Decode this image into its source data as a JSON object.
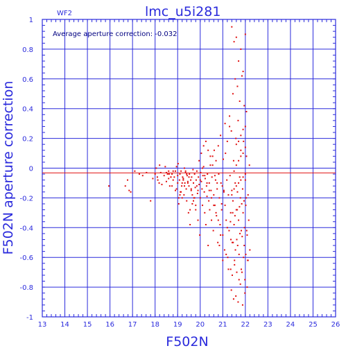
{
  "chart_data": {
    "type": "scatter",
    "title": "lmc_u5i281",
    "subtitle": "WF2",
    "annotation": "Average aperture correction: -0.032",
    "xlabel": "F502N",
    "ylabel": "F502N aperture correction",
    "xlim": [
      13,
      26
    ],
    "ylim": [
      -1,
      1
    ],
    "xticks": [
      "13",
      "14",
      "15",
      "16",
      "17",
      "18",
      "19",
      "20",
      "21",
      "22",
      "23",
      "24",
      "25",
      "26"
    ],
    "yticks": [
      "-1",
      "-0.8",
      "-0.6",
      "-0.4",
      "-0.2",
      "0",
      "0.2",
      "0.4",
      "0.6",
      "0.8",
      "1"
    ],
    "grid": true,
    "reference_line_y": -0.032,
    "colors": {
      "axes": "#2a2adc",
      "points": "#e01010",
      "reference": "#e01010"
    },
    "x": [
      15.95,
      16.68,
      16.78,
      16.85,
      16.92,
      17.1,
      17.3,
      17.45,
      17.62,
      17.8,
      17.9,
      18.0,
      18.05,
      18.1,
      18.12,
      18.18,
      18.2,
      18.25,
      18.3,
      18.4,
      18.5,
      18.6,
      18.62,
      18.7,
      18.75,
      18.8,
      18.9,
      18.95,
      19.0,
      19.02,
      19.05,
      19.08,
      19.1,
      19.12,
      19.15,
      19.18,
      19.2,
      19.22,
      19.25,
      19.28,
      19.3,
      19.32,
      19.35,
      19.38,
      19.4,
      19.42,
      19.45,
      19.48,
      19.5,
      19.52,
      19.55,
      19.58,
      19.6,
      19.62,
      19.65,
      19.68,
      19.7,
      19.72,
      19.75,
      19.78,
      19.8,
      19.82,
      19.85,
      19.88,
      19.9,
      19.92,
      19.95,
      19.98,
      20.0,
      20.02,
      20.05,
      20.08,
      20.1,
      20.12,
      20.15,
      20.18,
      20.2,
      20.22,
      20.25,
      20.28,
      20.3,
      20.32,
      20.35,
      20.38,
      20.4,
      20.42,
      20.45,
      20.48,
      20.5,
      20.52,
      20.55,
      20.58,
      20.6,
      20.62,
      20.65,
      20.68,
      20.7,
      20.72,
      20.75,
      20.78,
      20.8,
      20.82,
      20.85,
      20.88,
      20.9,
      20.92,
      20.95,
      20.98,
      21.0,
      21.02,
      21.05,
      21.08,
      21.1,
      21.12,
      21.15,
      21.18,
      21.2,
      21.22,
      21.25,
      21.28,
      21.3,
      21.32,
      21.35,
      21.38,
      21.4,
      21.42,
      21.45,
      21.48,
      21.5,
      21.52,
      21.55,
      21.58,
      21.6,
      21.62,
      21.65,
      21.68,
      21.7,
      21.72,
      21.75,
      21.78,
      21.8,
      21.82,
      21.85,
      21.88,
      21.9,
      21.92,
      21.95,
      21.98,
      22.0,
      22.02,
      22.05,
      22.08,
      22.1,
      22.12,
      22.15,
      22.18,
      22.2,
      21.35,
      21.4,
      21.5,
      21.6,
      21.7,
      21.8,
      21.9,
      22.0,
      21.45,
      21.55,
      21.65,
      21.75,
      21.85,
      21.95,
      22.05,
      21.3,
      21.38,
      21.48,
      21.58,
      21.68,
      21.78,
      21.88,
      21.98,
      22.08,
      21.42,
      21.52,
      21.62,
      21.72,
      21.82,
      21.92,
      22.02,
      22.12,
      21.36,
      21.46,
      21.56,
      21.66,
      21.76,
      21.86,
      21.96,
      22.06,
      21.34,
      21.44,
      21.54,
      21.64,
      21.74,
      21.84,
      21.94,
      22.04,
      21.4,
      21.5,
      21.6,
      21.7,
      21.8,
      21.9,
      22.0,
      21.5,
      21.6,
      21.7,
      21.8,
      21.9,
      22.0,
      21.6,
      21.7,
      21.8,
      21.9,
      22.0,
      21.1,
      21.15,
      21.2,
      21.25,
      20.95,
      21.0,
      21.05,
      20.85,
      20.9,
      20.75,
      20.8,
      20.65,
      20.7,
      20.55,
      20.6,
      20.45,
      20.5,
      20.35,
      20.4,
      20.25,
      20.3,
      20.15,
      20.2,
      20.05,
      20.1,
      19.95,
      20.0,
      19.85,
      19.9,
      19.75,
      19.8,
      19.65,
      19.7,
      19.55,
      19.6,
      19.45,
      19.5,
      19.35,
      19.4,
      19.25,
      19.3,
      19.15,
      19.2,
      19.05,
      19.1,
      18.95,
      19.0,
      18.85,
      18.9,
      18.75,
      18.8,
      18.65,
      18.7,
      18.55,
      18.6,
      18.45,
      18.5
    ],
    "y": [
      -0.12,
      -0.12,
      -0.08,
      -0.15,
      -0.16,
      -0.02,
      -0.04,
      -0.05,
      -0.03,
      -0.22,
      -0.07,
      -0.04,
      0.0,
      -0.06,
      -0.08,
      -0.1,
      0.02,
      -0.03,
      -0.11,
      -0.05,
      -0.09,
      -0.07,
      -0.04,
      -0.06,
      -0.12,
      -0.02,
      -0.15,
      0.01,
      -0.05,
      0.03,
      -0.2,
      -0.08,
      -0.04,
      -0.16,
      -0.02,
      -0.12,
      -0.1,
      -0.06,
      -0.07,
      -0.18,
      0.0,
      -0.1,
      -0.03,
      -0.14,
      -0.22,
      -0.05,
      -0.09,
      -0.3,
      -0.12,
      -0.04,
      -0.38,
      -0.08,
      -0.15,
      -0.06,
      -0.24,
      -0.01,
      -0.1,
      -0.2,
      -0.04,
      -0.13,
      -0.28,
      -0.08,
      -0.02,
      -0.17,
      -0.35,
      -0.06,
      -0.11,
      -0.45,
      -0.2,
      -0.03,
      -0.09,
      -0.14,
      -0.25,
      -0.05,
      0.01,
      -0.16,
      -0.3,
      -0.07,
      -0.38,
      -0.12,
      -0.19,
      -0.04,
      -0.52,
      -0.22,
      -0.1,
      -0.28,
      0.02,
      -0.15,
      -0.35,
      -0.06,
      0.08,
      -0.42,
      -0.18,
      0.12,
      -0.25,
      -0.08,
      0.05,
      -0.32,
      -0.14,
      -0.5,
      0.15,
      -0.04,
      -0.2,
      -0.38,
      0.22,
      -0.1,
      -0.28,
      -0.12,
      -0.45,
      0.06,
      -0.16,
      -0.55,
      -0.25,
      0.1,
      -0.35,
      -0.08,
      0.18,
      -0.6,
      -0.18,
      -0.42,
      0.28,
      -0.05,
      -0.3,
      0.25,
      -0.15,
      -0.5,
      -0.22,
      0.05,
      -0.38,
      -0.62,
      -0.1,
      0.2,
      -0.28,
      -0.48,
      -0.16,
      0.32,
      -0.35,
      -0.58,
      -0.06,
      -0.2,
      0.12,
      -0.42,
      -0.7,
      -0.14,
      -0.3,
      0.18,
      -0.52,
      -0.75,
      -0.08,
      -0.25,
      0.08,
      -0.45,
      -0.62,
      -0.18,
      -0.35,
      0.02,
      -0.55,
      -0.68,
      0.95,
      0.85,
      0.88,
      0.72,
      0.8,
      0.65,
      0.9,
      0.5,
      0.6,
      0.55,
      0.45,
      0.62,
      0.42,
      0.38,
      0.35,
      -0.82,
      -0.88,
      -0.86,
      -0.9,
      -0.78,
      -0.92,
      -0.84,
      -0.8,
      -0.72,
      -0.65,
      -0.7,
      -0.75,
      -0.68,
      -0.6,
      -0.58,
      -0.62,
      -0.48,
      -0.5,
      -0.55,
      -0.52,
      -0.44,
      -0.46,
      -0.4,
      -0.42,
      -0.36,
      -0.3,
      -0.32,
      -0.28,
      -0.26,
      -0.24,
      -0.22,
      -0.2,
      -0.18,
      -0.14,
      -0.12,
      -0.1,
      -0.08,
      -0.06,
      -0.04,
      -0.02,
      0.02,
      0.05,
      0.08,
      0.1,
      0.14,
      0.16,
      0.18,
      0.22,
      0.26,
      0.28,
      0.3,
      -0.58,
      -0.4,
      -0.68,
      -0.24,
      -0.62,
      -0.15,
      -0.52,
      -0.45,
      -0.1,
      -0.35,
      -0.05,
      -0.3,
      0.02,
      -0.25,
      0.08,
      -0.2,
      0.12,
      -0.15,
      0.18,
      -0.1,
      0.15,
      -0.05,
      0.1,
      0.0,
      0.05,
      -0.08,
      -0.12,
      -0.15,
      -0.2,
      -0.25,
      -0.18,
      -0.22,
      -0.28,
      -0.14,
      -0.1,
      -0.06,
      -0.02,
      -0.04,
      -0.08,
      -0.12,
      -0.16,
      -0.2,
      -0.24,
      -0.18,
      -0.14,
      -0.1,
      -0.06,
      -0.02,
      -0.04,
      -0.08,
      -0.12,
      -0.06,
      -0.04,
      -0.02,
      0.01,
      -0.03
    ]
  }
}
